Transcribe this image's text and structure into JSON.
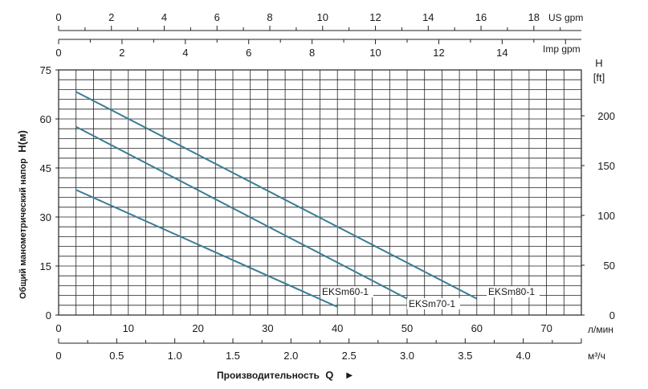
{
  "chart_data": {
    "type": "line",
    "ylabel": "Общий манометрический напор",
    "ylabel_symbol": "H(м)",
    "xlabel": "Производительность",
    "xlabel_symbol": "Q",
    "xlabel_arrow": "►",
    "x_primary": {
      "unit": "л/мин",
      "range": [
        0,
        75
      ],
      "ticks": [
        0,
        10,
        20,
        30,
        40,
        50,
        60,
        70
      ]
    },
    "x_m3h": {
      "unit": "м³/ч",
      "range": [
        0,
        4.5
      ],
      "ticks": [
        0,
        0.5,
        1.0,
        1.5,
        2.0,
        2.5,
        3.0,
        3.5,
        4.0
      ],
      "tick_labels": [
        "0",
        "0.5",
        "1.0",
        "1.5",
        "2.0",
        "2.5",
        "3.0",
        "3.5",
        "4.0"
      ]
    },
    "x_us_gpm": {
      "unit": "US gpm",
      "range": [
        0,
        19.8
      ],
      "ticks": [
        0,
        2,
        4,
        6,
        8,
        10,
        12,
        14,
        16,
        18
      ]
    },
    "x_imp_gpm": {
      "unit": "Imp gpm",
      "range": [
        0,
        16.5
      ],
      "ticks": [
        0,
        2,
        4,
        6,
        8,
        10,
        12,
        14
      ]
    },
    "y_left": {
      "range": [
        0,
        75
      ],
      "ticks": [
        0,
        15,
        30,
        45,
        60,
        75
      ]
    },
    "y_right": {
      "unit_line1": "H",
      "unit_line2": "[ft]",
      "range": [
        0,
        246
      ],
      "ticks": [
        0,
        50,
        100,
        150,
        200
      ]
    },
    "grid": true,
    "series": [
      {
        "name": "EKSm80-1",
        "x": [
          2.5,
          60
        ],
        "y": [
          68.3,
          5
        ]
      },
      {
        "name": "EKSm70-1",
        "x": [
          2.5,
          50
        ],
        "y": [
          57.6,
          5
        ]
      },
      {
        "name": "EKSm60-1",
        "x": [
          2.5,
          40
        ],
        "y": [
          38.3,
          2.5
        ]
      }
    ],
    "colors": {
      "line": "#3a7d94",
      "grid": "#222222",
      "axis": "#222222"
    }
  }
}
